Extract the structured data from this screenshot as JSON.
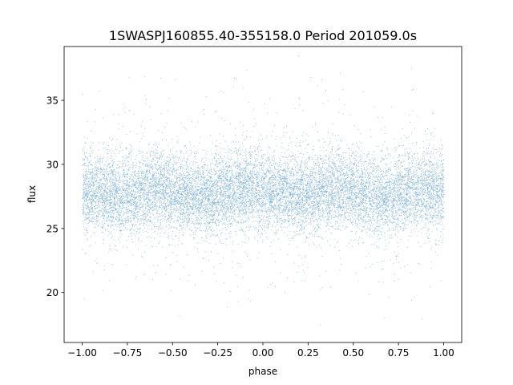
{
  "chart_data": {
    "type": "scatter",
    "title": "1SWASPJ160855.40-355158.0 Period 201059.0s",
    "xlabel": "phase",
    "ylabel": "flux",
    "xlim": [
      -1.1,
      1.1
    ],
    "ylim": [
      16.1,
      39.2
    ],
    "xticks": [
      -1.0,
      -0.75,
      -0.5,
      -0.25,
      0.0,
      0.25,
      0.5,
      0.75,
      1.0
    ],
    "xtick_labels": [
      "−1.00",
      "−0.75",
      "−0.50",
      "−0.25",
      "0.00",
      "0.25",
      "0.50",
      "0.75",
      "1.00"
    ],
    "yticks": [
      20,
      25,
      30,
      35
    ],
    "ytick_labels": [
      "20",
      "25",
      "30",
      "35"
    ],
    "grid": false,
    "point_color": "#1f77b4",
    "series": [
      {
        "x_range": [
          -1.0,
          1.0
        ],
        "flux_center_by_phase": {
          "x": [
            -1.0,
            -0.9,
            -0.8,
            -0.7,
            -0.6,
            -0.5,
            -0.4,
            -0.3,
            -0.2,
            -0.1,
            0.0,
            0.1,
            0.2,
            0.3,
            0.4,
            0.5,
            0.6,
            0.7,
            0.8,
            0.9,
            1.0
          ],
          "y": [
            27.9,
            27.8,
            27.6,
            27.7,
            28.2,
            27.9,
            27.6,
            27.5,
            27.9,
            28.1,
            27.9,
            27.8,
            27.6,
            27.7,
            28.2,
            27.9,
            27.6,
            27.5,
            27.9,
            28.1,
            27.9
          ]
        },
        "typical_spread": [
          25.0,
          31.0
        ],
        "outlier_range": [
          17.0,
          38.5
        ]
      }
    ]
  }
}
